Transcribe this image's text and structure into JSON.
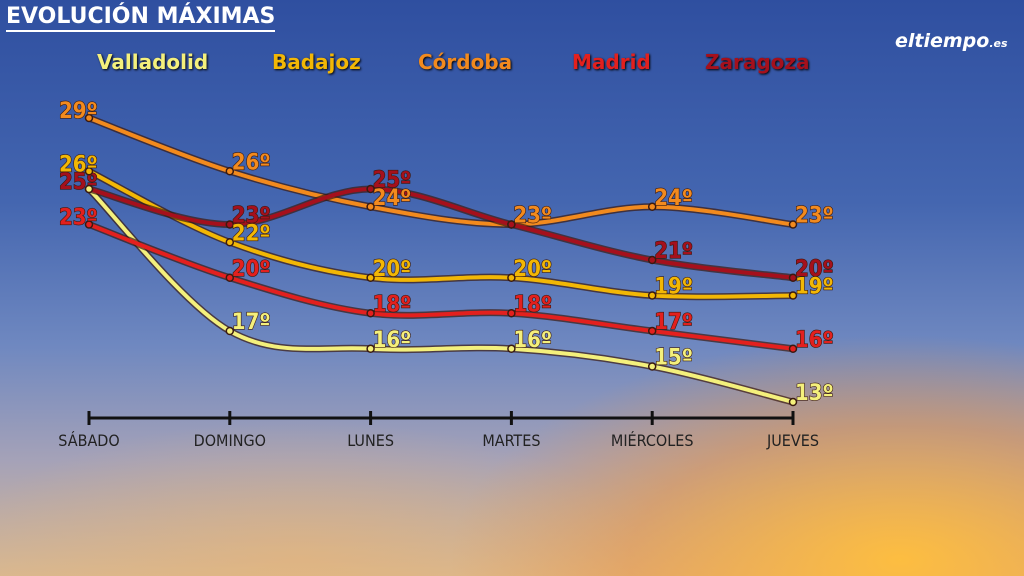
{
  "title": "EVOLUCIÓN MÁXIMAS",
  "logo": {
    "main": "eltiempo",
    "suffix": ".es"
  },
  "chart_data": {
    "type": "line",
    "title": "EVOLUCIÓN MÁXIMAS",
    "categories": [
      "SÁBADO",
      "DOMINGO",
      "LUNES",
      "MARTES",
      "MIÉRCOLES",
      "JUEVES"
    ],
    "unit": "º",
    "legend_placement": "top",
    "grid": false,
    "series": [
      {
        "name": "Valladolid",
        "color": "#f4f07c",
        "values": [
          25,
          17,
          16,
          16,
          15,
          13
        ]
      },
      {
        "name": "Badajoz",
        "color": "#f2b705",
        "values": [
          26,
          22,
          20,
          20,
          19,
          19
        ]
      },
      {
        "name": "Córdoba",
        "color": "#f28a1e",
        "values": [
          29,
          26,
          24,
          23,
          24,
          23
        ]
      },
      {
        "name": "Madrid",
        "color": "#e3201e",
        "values": [
          23,
          20,
          18,
          18,
          17,
          16
        ]
      },
      {
        "name": "Zaragoza",
        "color": "#a5101c",
        "values": [
          25,
          23,
          25,
          23,
          21,
          20
        ]
      }
    ]
  }
}
